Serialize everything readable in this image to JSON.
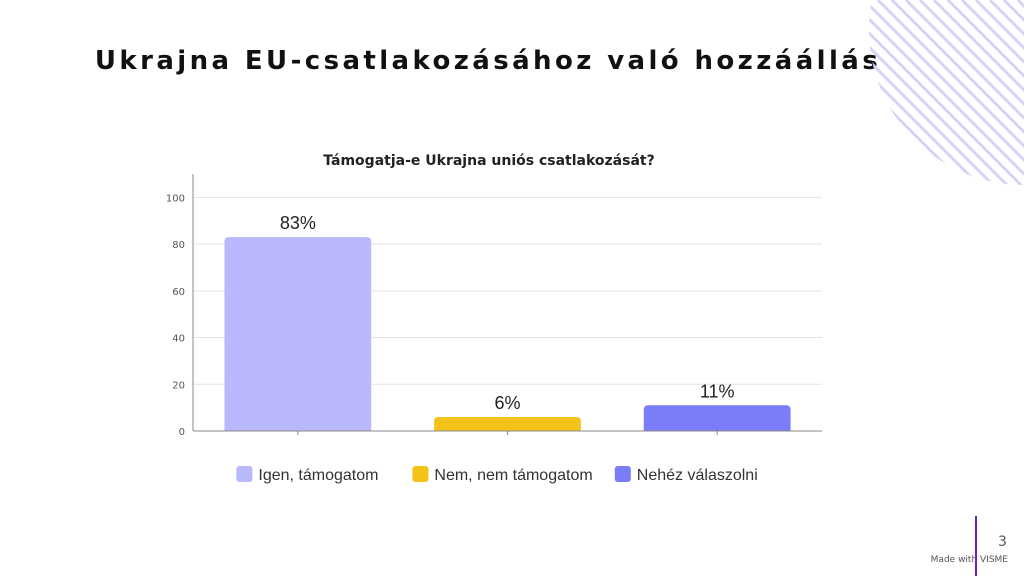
{
  "slide": {
    "title": "Ukrajna EU-csatlakozásához való hozzáállás",
    "page_number": "3",
    "brand": "Made with VISME"
  },
  "colors": {
    "igen": "#b9b8fc",
    "nem": "#f3c31a",
    "nehez": "#7b7cf7",
    "grid": "#e3e3e3",
    "axis": "#8a8a8a",
    "deco_stripes": "#ddd0f7",
    "brand_bar": "#6a1fd0"
  },
  "chart_data": {
    "type": "bar",
    "title": "Támogatja-e Ukrajna uniós csatlakozását?",
    "categories": [
      "Igen, támogatom",
      "Nem, nem támogatom",
      "Nehéz válaszolni"
    ],
    "values": [
      83,
      6,
      11
    ],
    "data_labels": [
      "83%",
      "6%",
      "11%"
    ],
    "colors": [
      "#b9b8fc",
      "#f3c31a",
      "#7b7cf7"
    ],
    "ylim": [
      0,
      110
    ],
    "yticks": [
      0,
      20,
      40,
      60,
      80,
      100
    ],
    "xlabel": "",
    "ylabel": "",
    "grid": true,
    "legend": {
      "position": "bottom",
      "entries": [
        "Igen, támogatom",
        "Nem, nem támogatom",
        "Nehéz válaszolni"
      ]
    }
  }
}
